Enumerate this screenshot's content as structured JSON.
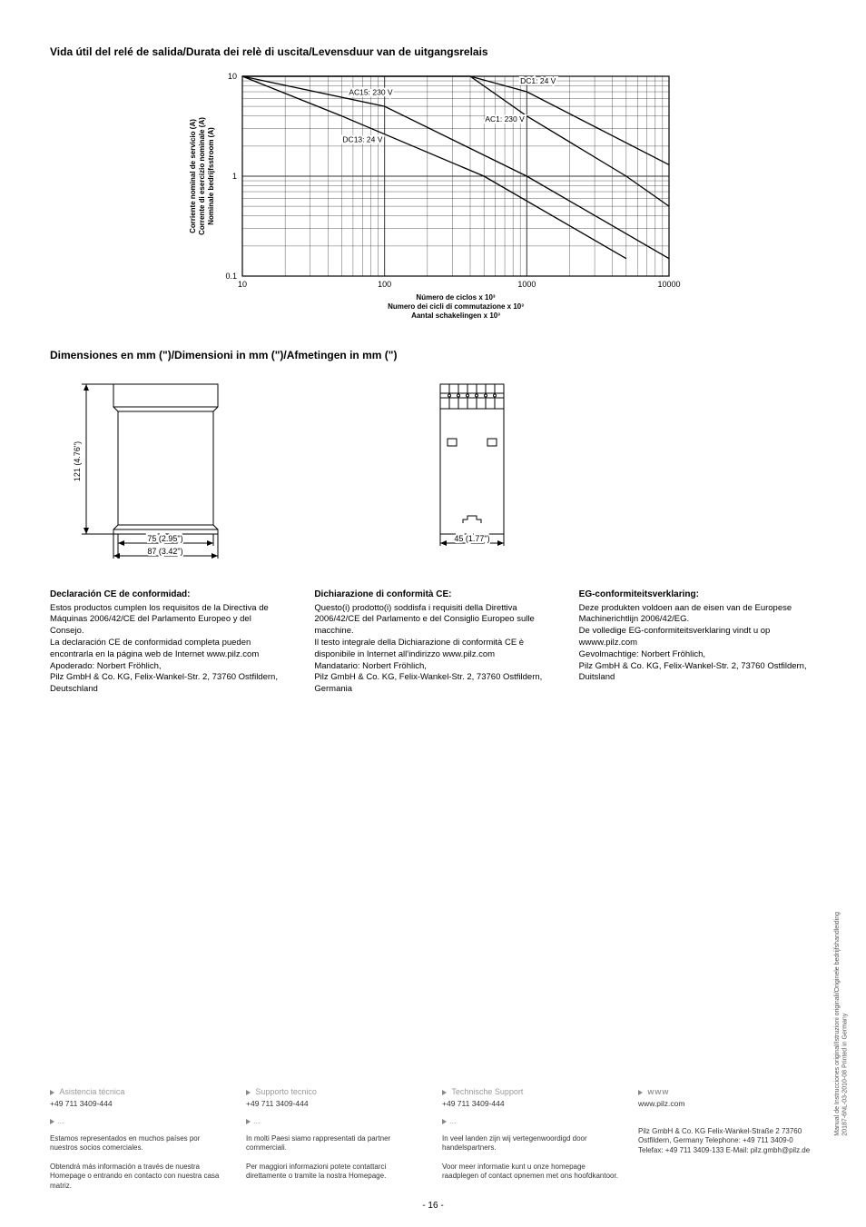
{
  "section1_title": "Vida útil del relé de salida/Durata dei relè di uscita/Levensduur van de uitgangsrelais",
  "section2_title": "Dimensiones en mm (\")/Dimensioni in mm (\")/Afmetingen in mm (\")",
  "chart": {
    "type": "line",
    "xlim": [
      10,
      10000
    ],
    "ylim": [
      0.1,
      10
    ],
    "x_scale": "log",
    "y_scale": "log",
    "x_ticks": [
      "10",
      "100",
      "1000",
      "10000"
    ],
    "y_ticks": [
      "0.1",
      "1",
      "10"
    ],
    "y_label_es": "Corriente nominal de servicio (A)",
    "y_label_it": "Corrente di esercizio nominale (A)",
    "y_label_nl": "Nominale bedrijfsstroom (A)",
    "x_label_es": "Número de ciclos x 10³",
    "x_label_it": "Numero dei cicli di commutazione x 10³",
    "x_label_nl": "Aantal schakelingen x 10³",
    "background_color": "#ffffff",
    "line_color": "#000000",
    "grid_color": "#333333",
    "label_fontsize": 8,
    "series": [
      {
        "label": "AC15: 230 V",
        "points": [
          [
            10,
            10
          ],
          [
            100,
            5
          ],
          [
            1000,
            1
          ],
          [
            10000,
            0.15
          ]
        ],
        "label_pos": [
          80,
          6.5
        ]
      },
      {
        "label": "DC1: 24 V",
        "points": [
          [
            10,
            10
          ],
          [
            400,
            10
          ],
          [
            1000,
            7
          ],
          [
            10000,
            1.3
          ]
        ],
        "label_pos": [
          1200,
          8.5
        ]
      },
      {
        "label": "DC13: 24 V",
        "points": [
          [
            10,
            10
          ],
          [
            50,
            4
          ],
          [
            500,
            1
          ],
          [
            5000,
            0.15
          ]
        ],
        "label_pos": [
          70,
          2.2
        ]
      },
      {
        "label": "AC1: 230 V",
        "points": [
          [
            10,
            10
          ],
          [
            400,
            10
          ],
          [
            1000,
            4
          ],
          [
            5000,
            1
          ],
          [
            10000,
            0.5
          ]
        ],
        "label_pos": [
          700,
          3.5
        ]
      }
    ]
  },
  "dimensions": {
    "side_height": "121 (4.76\")",
    "side_w1": "75  (2.95\")",
    "side_w2": "87 (3.42\")",
    "front_width": "45 (1.77\")"
  },
  "declarations": {
    "es": {
      "heading": "Declaración CE de conformidad:",
      "text": "Estos productos cumplen los requisitos de la Directiva de Máquinas 2006/42/CE del Parlamento Europeo y del Consejo.\nLa declaración CE de conformidad completa pueden encontrarla en la página web de Internet www.pilz.com\nApoderado: Norbert Fröhlich,\nPilz GmbH & Co. KG, Felix-Wankel-Str. 2, 73760 Ostfildern, Deutschland"
    },
    "it": {
      "heading": "Dichiarazione di conformità CE:",
      "text": "Questo(i) prodotto(i) soddisfa i requisiti della Direttiva 2006/42/CE del Parlamento e del Consiglio Europeo sulle macchine.\nIl testo integrale della Dichiarazione di conformità CE è disponibile in Internet all'indirizzo www.pilz.com\nMandatario: Norbert Fröhlich,\nPilz GmbH & Co. KG, Felix-Wankel-Str. 2, 73760 Ostfildern, Germania"
    },
    "nl": {
      "heading": "EG-conformiteitsverklaring:",
      "text": "Deze produkten voldoen aan de eisen van de Europese Machinerichtlijn 2006/42/EG.\nDe volledige EG-conformiteitsverklaring vindt u op wwww.pilz.com\nGevolmachtige:  Norbert Fröhlich,\nPilz GmbH & Co. KG, Felix-Wankel-Str. 2, 73760 Ostfildern, Duitsland"
    }
  },
  "footer": {
    "c1": {
      "title": "Asistencia técnica",
      "phone": "+49 711 3409-444",
      "dots": "...",
      "text": "Estamos representados en muchos países por nuestros socios comerciales.\n\nObtendrá más información a través de nuestra Homepage o entrando en contacto con nuestra casa matriz."
    },
    "c2": {
      "title": "Supporto tecnico",
      "phone": "+49 711 3409-444",
      "dots": "...",
      "text": "In molti Paesi siamo rappresentati da partner commerciali.\n\nPer maggiori informazioni potete contattarci direttamente o tramite la nostra Homepage."
    },
    "c3": {
      "title": "Technische Support",
      "phone": "+49 711 3409-444",
      "dots": "...",
      "text": "In veel landen zijn wij vertegenwoordigd door handelspartners.\n\nVoor meer informatie kunt u onze homepage raadplegen of contact opnemen met ons hoofdkantoor."
    },
    "c4": {
      "title": "www",
      "url": "www.pilz.com",
      "addr": "Pilz GmbH & Co. KG\nFelix-Wankel-Straße 2\n73760 Ostfildern, Germany\nTelephone: +49 711 3409-0\nTelefax: +49 711 3409-133\nE-Mail: pilz.gmbh@pilz.de"
    }
  },
  "vert_line1": "Manual de Instrucciones original/Istruzioni originali/Originele bedrijfshandleiding",
  "vert_line2": "20187-6NL-03-2010-08 Printed in Germany",
  "page_number": "- 16 -"
}
